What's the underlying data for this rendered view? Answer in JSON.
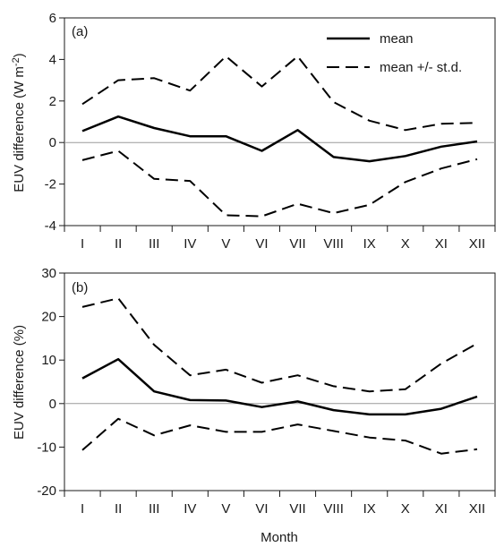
{
  "colors": {
    "line": "#000000",
    "frame": "#1a1a1a",
    "zero_line": "#9a9a9a",
    "background": "#ffffff"
  },
  "chart_data": [
    {
      "type": "line",
      "panel_label": "(a)",
      "x": [
        "I",
        "II",
        "III",
        "IV",
        "V",
        "VI",
        "VII",
        "VIII",
        "IX",
        "X",
        "XI",
        "XII"
      ],
      "xlabel": "",
      "ylabel_main": "EUV difference (W m",
      "ylabel_sup": "-2",
      "ylabel_close": ")",
      "ylim": [
        -4,
        6
      ],
      "yticks": [
        -4,
        -2,
        0,
        2,
        4,
        6
      ],
      "grid": false,
      "legend": {
        "position": "top-right",
        "entries": [
          "mean",
          "mean +/- st.d."
        ]
      },
      "series": [
        {
          "name": "mean",
          "style": "solid",
          "values": [
            0.55,
            1.25,
            0.7,
            0.3,
            0.3,
            -0.4,
            0.6,
            -0.7,
            -0.9,
            -0.65,
            -0.2,
            0.05
          ]
        },
        {
          "name": "mean +/- st.d.",
          "style": "dashed",
          "values": [
            1.85,
            3.0,
            3.1,
            2.5,
            4.15,
            2.7,
            4.15,
            1.95,
            1.05,
            0.6,
            0.9,
            0.95
          ]
        },
        {
          "name": "mean +/- st.d.",
          "style": "dashed",
          "values": [
            -0.85,
            -0.4,
            -1.75,
            -1.85,
            -3.5,
            -3.55,
            -2.95,
            -3.4,
            -3.0,
            -1.9,
            -1.25,
            -0.8
          ]
        }
      ]
    },
    {
      "type": "line",
      "panel_label": "(b)",
      "x": [
        "I",
        "II",
        "III",
        "IV",
        "V",
        "VI",
        "VII",
        "VIII",
        "IX",
        "X",
        "XI",
        "XII"
      ],
      "xlabel": "Month",
      "ylabel_main": "EUV difference (%)",
      "ylim": [
        -20,
        30
      ],
      "yticks": [
        -20,
        -10,
        0,
        10,
        20,
        30
      ],
      "grid": false,
      "series": [
        {
          "name": "mean",
          "style": "solid",
          "values": [
            5.8,
            10.2,
            2.8,
            0.8,
            0.7,
            -0.8,
            0.5,
            -1.5,
            -2.5,
            -2.5,
            -1.2,
            1.6
          ]
        },
        {
          "name": "mean +/- st.d.",
          "style": "dashed",
          "values": [
            22.2,
            24.2,
            13.5,
            6.5,
            7.8,
            4.8,
            6.5,
            4.0,
            2.8,
            3.3,
            9.2,
            13.8
          ]
        },
        {
          "name": "mean +/- st.d.",
          "style": "dashed",
          "values": [
            -10.7,
            -3.5,
            -7.3,
            -5.0,
            -6.5,
            -6.5,
            -4.8,
            -6.3,
            -7.8,
            -8.5,
            -11.5,
            -10.5
          ]
        }
      ]
    }
  ]
}
